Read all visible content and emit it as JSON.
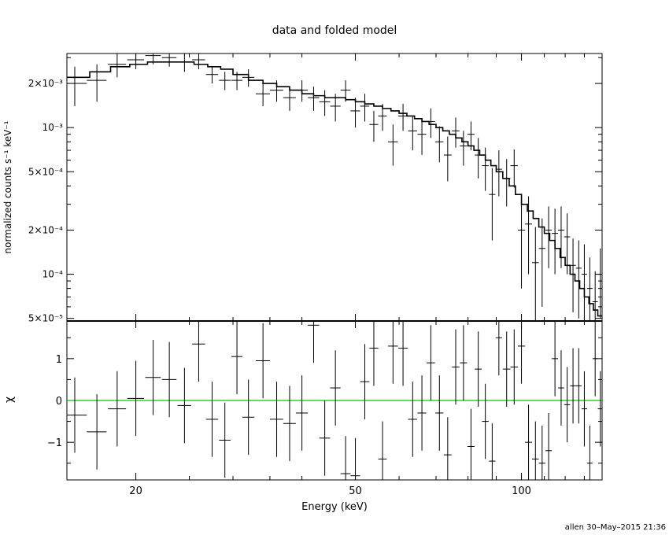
{
  "chart_data": [
    {
      "type": "line",
      "panel": "top",
      "title": "data and folded model",
      "ylabel": "normalized counts s⁻¹ keV⁻¹",
      "xscale": "log",
      "yscale": "log",
      "xlim": [
        15.0,
        140.0
      ],
      "ylim": [
        4.8e-05,
        0.0032
      ],
      "y_ticks": [
        {
          "value": 5e-05,
          "label": "5×10⁻⁵"
        },
        {
          "value": 0.0001,
          "label": "10⁻⁴"
        },
        {
          "value": 0.0002,
          "label": "2×10⁻⁴"
        },
        {
          "value": 0.0005,
          "label": "5×10⁻⁴"
        },
        {
          "value": 0.001,
          "label": "10⁻³"
        },
        {
          "value": 0.002,
          "label": "2×10⁻³"
        }
      ],
      "series": [
        {
          "role": "data",
          "x": [
            15.5,
            17.0,
            18.5,
            20.0,
            21.5,
            23.0,
            24.5,
            26.0,
            27.5,
            29.0,
            30.5,
            32.0,
            34.0,
            36.0,
            38.0,
            40.0,
            42.0,
            44.0,
            46.0,
            48.0,
            50.0,
            52.0,
            54.0,
            56.0,
            58.5,
            61.0,
            63.5,
            66.0,
            68.5,
            71.0,
            73.5,
            76.0,
            78.5,
            81.0,
            83.5,
            86.0,
            88.5,
            91.0,
            94.0,
            97.0,
            100.0,
            103.0,
            106.0,
            109.0,
            112.0,
            115.0,
            118.0,
            121.0,
            124.0,
            127.0,
            130.0,
            133.0,
            136.0,
            139.0
          ],
          "xerr": [
            0.8,
            0.7,
            0.7,
            0.7,
            0.7,
            0.7,
            0.7,
            0.7,
            0.7,
            0.7,
            0.7,
            0.8,
            1.0,
            1.0,
            1.0,
            1.0,
            1.0,
            1.0,
            1.0,
            1.0,
            1.0,
            1.0,
            1.0,
            1.0,
            1.2,
            1.2,
            1.2,
            1.2,
            1.2,
            1.2,
            1.2,
            1.2,
            1.2,
            1.2,
            1.2,
            1.2,
            1.2,
            1.2,
            1.5,
            1.5,
            1.5,
            1.5,
            1.5,
            1.5,
            1.5,
            1.5,
            1.5,
            1.5,
            1.5,
            1.5,
            1.5,
            1.5,
            1.5,
            1.5
          ],
          "y": [
            0.002,
            0.0021,
            0.0027,
            0.0029,
            0.0031,
            0.003,
            0.0028,
            0.0029,
            0.0023,
            0.0021,
            0.0021,
            0.0022,
            0.0017,
            0.0018,
            0.0016,
            0.0018,
            0.0016,
            0.0015,
            0.0014,
            0.0018,
            0.0013,
            0.0014,
            0.00105,
            0.0012,
            0.0008,
            0.0012,
            0.00095,
            0.0009,
            0.0011,
            0.0008,
            0.00065,
            0.00095,
            0.00075,
            0.0009,
            0.00065,
            0.00055,
            0.00035,
            0.00052,
            0.00045,
            0.00055,
            0.0002,
            0.00022,
            0.00012,
            0.00015,
            0.0002,
            0.00019,
            0.0002,
            0.00018,
            0.000115,
            0.00011,
            0.0001,
            8e-05,
            6.5e-05,
            0.0001
          ],
          "yerr": [
            0.0006,
            0.0006,
            0.0005,
            0.0004,
            0.0004,
            0.0004,
            0.0004,
            0.0004,
            0.0003,
            0.0003,
            0.0003,
            0.0003,
            0.0003,
            0.0003,
            0.0003,
            0.0003,
            0.0003,
            0.0003,
            0.0003,
            0.0003,
            0.0003,
            0.0003,
            0.00025,
            0.00025,
            0.00025,
            0.00025,
            0.00025,
            0.00025,
            0.00025,
            0.00022,
            0.00022,
            0.00022,
            0.0002,
            0.0002,
            0.0002,
            0.00018,
            0.00018,
            0.00018,
            0.00016,
            0.00016,
            0.00012,
            0.00012,
            9e-05,
            9e-05,
            9e-05,
            9e-05,
            9e-05,
            8e-05,
            6e-05,
            6e-05,
            6e-05,
            5e-05,
            4e-05,
            5e-05
          ]
        },
        {
          "role": "model",
          "x": [
            15.0,
            16.5,
            18.0,
            19.5,
            21.0,
            22.5,
            24.0,
            25.5,
            27.0,
            28.5,
            30.0,
            32.0,
            34.0,
            36.0,
            38.0,
            40.0,
            42.0,
            44.0,
            46.0,
            48.0,
            50.0,
            52.0,
            54.0,
            56.0,
            58.0,
            60.0,
            62.0,
            64.0,
            66.0,
            68.0,
            70.0,
            72.0,
            74.0,
            76.0,
            78.0,
            80.0,
            82.0,
            84.0,
            86.0,
            88.0,
            90.0,
            92.5,
            95.0,
            97.5,
            100.0,
            102.5,
            105.0,
            107.5,
            110.0,
            112.5,
            115.0,
            117.5,
            120.0,
            122.5,
            125.0,
            127.5,
            130.0,
            132.5,
            135.0,
            137.5,
            140.0
          ],
          "y": [
            0.0022,
            0.0024,
            0.0026,
            0.0027,
            0.0028,
            0.0028,
            0.0028,
            0.0027,
            0.0026,
            0.0025,
            0.0023,
            0.0021,
            0.002,
            0.0019,
            0.0018,
            0.0017,
            0.00165,
            0.0016,
            0.0016,
            0.00155,
            0.0015,
            0.00145,
            0.0014,
            0.00135,
            0.0013,
            0.00125,
            0.0012,
            0.00115,
            0.0011,
            0.00105,
            0.001,
            0.00095,
            0.0009,
            0.00085,
            0.0008,
            0.00075,
            0.0007,
            0.00065,
            0.0006,
            0.00055,
            0.0005,
            0.00045,
            0.0004,
            0.00035,
            0.0003,
            0.00027,
            0.00024,
            0.00021,
            0.00019,
            0.00017,
            0.00015,
            0.00013,
            0.000115,
            0.0001,
            9e-05,
            8e-05,
            7e-05,
            6.3e-05,
            5.7e-05,
            5.2e-05,
            4.9e-05
          ]
        }
      ]
    },
    {
      "type": "scatter",
      "panel": "bottom",
      "xlabel": "Energy (keV)",
      "ylabel": "χ",
      "xscale": "log",
      "xlim": [
        15.0,
        140.0
      ],
      "ylim": [
        -1.9,
        1.9
      ],
      "x_ticks": [
        {
          "value": 20,
          "label": "20"
        },
        {
          "value": 50,
          "label": "50"
        },
        {
          "value": 100,
          "label": "100"
        }
      ],
      "y_ticks": [
        {
          "value": -1,
          "label": "−1"
        },
        {
          "value": 0,
          "label": "0"
        },
        {
          "value": 1,
          "label": "1"
        }
      ],
      "zero_line_color": "#00cc00",
      "series": [
        {
          "role": "residuals",
          "x": [
            15.5,
            17.0,
            18.5,
            20.0,
            21.5,
            23.0,
            24.5,
            26.0,
            27.5,
            29.0,
            30.5,
            32.0,
            34.0,
            36.0,
            38.0,
            40.0,
            42.0,
            44.0,
            46.0,
            48.0,
            50.0,
            52.0,
            54.0,
            56.0,
            58.5,
            61.0,
            63.5,
            66.0,
            68.5,
            71.0,
            73.5,
            76.0,
            78.5,
            81.0,
            83.5,
            86.0,
            88.5,
            91.0,
            94.0,
            97.0,
            100.0,
            103.0,
            106.0,
            109.0,
            112.0,
            115.0,
            118.0,
            121.0,
            124.0,
            127.0,
            130.0,
            133.0,
            136.0,
            139.0
          ],
          "y": [
            -0.35,
            -0.75,
            -0.2,
            0.05,
            0.55,
            0.5,
            -0.12,
            1.35,
            -0.45,
            -0.95,
            1.05,
            -0.4,
            0.95,
            -0.45,
            -0.55,
            -0.3,
            1.8,
            -0.9,
            0.3,
            -1.75,
            -1.8,
            0.45,
            1.25,
            -1.4,
            1.3,
            1.25,
            -0.45,
            -0.3,
            0.9,
            -0.3,
            -1.3,
            0.8,
            0.9,
            -1.1,
            0.75,
            -0.5,
            -1.45,
            1.5,
            0.75,
            0.8,
            1.3,
            -1.0,
            -1.4,
            -1.5,
            -1.2,
            1.0,
            0.3,
            -0.1,
            0.35,
            0.35,
            -0.2,
            -1.5,
            1.0,
            -0.2
          ],
          "yerr": [
            0.9,
            0.9,
            0.9,
            0.9,
            0.9,
            0.9,
            0.9,
            0.9,
            0.9,
            0.9,
            0.9,
            0.9,
            0.9,
            0.9,
            0.9,
            0.9,
            0.9,
            0.9,
            0.9,
            0.9,
            0.9,
            0.9,
            0.9,
            0.9,
            0.9,
            0.9,
            0.9,
            0.9,
            0.9,
            0.9,
            0.9,
            0.9,
            0.9,
            0.9,
            0.9,
            0.9,
            0.9,
            0.9,
            0.9,
            0.9,
            0.9,
            0.9,
            0.9,
            0.9,
            0.9,
            0.9,
            0.9,
            0.9,
            0.9,
            0.9,
            0.9,
            0.9,
            0.9,
            0.9
          ]
        }
      ]
    }
  ],
  "footer": "allen 30–May–2015 21:36"
}
